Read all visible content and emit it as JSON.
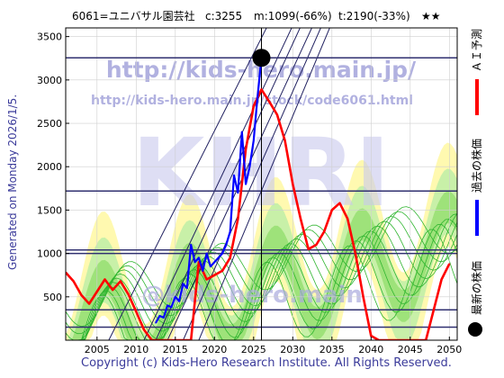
{
  "header": {
    "code_name": "6061=ユニバサル園芸社",
    "current": "c:3255",
    "min": "m:1099(-66%)",
    "target": "t:2190(-33%)",
    "rating": "★★"
  },
  "side_label": "Generated on Monday 2026/1/5.",
  "legend": {
    "ai": "ＡＩ予測",
    "past": "過去の株価",
    "latest": "最新の株価",
    "ai_color": "#ff0000",
    "past_color": "#0000ff",
    "latest_color": "#000000"
  },
  "watermarks": {
    "url_main": "http://kids-hero.main.jp/",
    "url_sub": "http://kids-hero.main.jp/stock/code6061.html",
    "big": "KHRI",
    "bottom": "@kids-hero.main"
  },
  "footer": "Copyright (c) Kids-Hero Research Institute. All Rights Reserved.",
  "chart_data": {
    "type": "line",
    "x_ticks": [
      2005,
      2010,
      2015,
      2020,
      2025,
      2030,
      2035,
      2040,
      2045,
      2050
    ],
    "y_ticks": [
      500,
      1000,
      1500,
      2000,
      2500,
      3000,
      3500
    ],
    "xlim": [
      2001,
      2051
    ],
    "ylim": [
      0,
      3600
    ],
    "grid": true,
    "horizontal_levels": [
      150,
      350,
      1000,
      1040,
      1720,
      3255
    ],
    "latest_point": {
      "x": 2026.0,
      "y": 3255
    },
    "latest_year_line": 2026.0,
    "series": [
      {
        "role": "ai_prediction",
        "color": "#ff0000",
        "x": [
          2001,
          2002,
          2003,
          2004,
          2005,
          2006,
          2007,
          2008,
          2009,
          2010,
          2011,
          2012,
          2013,
          2014,
          2015,
          2016,
          2017,
          2018,
          2019,
          2020,
          2021,
          2022,
          2023,
          2024,
          2025,
          2026,
          2027,
          2028,
          2029,
          2030,
          2031,
          2032,
          2033,
          2034,
          2035,
          2036,
          2037,
          2038,
          2039,
          2040,
          2041,
          2042,
          2043,
          2044,
          2045,
          2046,
          2047,
          2048,
          2049,
          2050
        ],
        "y": [
          780,
          680,
          520,
          420,
          560,
          700,
          580,
          680,
          530,
          330,
          120,
          0,
          0,
          0,
          0,
          0,
          0,
          900,
          700,
          750,
          800,
          950,
          1400,
          2200,
          2700,
          2890,
          2750,
          2600,
          2300,
          1800,
          1400,
          1050,
          1100,
          1250,
          1500,
          1580,
          1400,
          1000,
          500,
          50,
          0,
          0,
          0,
          0,
          0,
          0,
          0,
          350,
          700,
          880
        ]
      },
      {
        "role": "past_price",
        "color": "#0000ff",
        "x": [
          2012.5,
          2013.0,
          2013.5,
          2014.0,
          2014.5,
          2015.0,
          2015.5,
          2016.0,
          2016.5,
          2017.0,
          2017.5,
          2018.0,
          2018.5,
          2019.0,
          2019.5,
          2020.0,
          2020.5,
          2021.0,
          2021.5,
          2022.0,
          2022.5,
          2023.0,
          2023.5,
          2024.0,
          2024.5,
          2025.0,
          2025.5,
          2026.0
        ],
        "y": [
          200,
          280,
          260,
          400,
          380,
          500,
          450,
          650,
          600,
          1100,
          900,
          950,
          800,
          1000,
          850,
          900,
          950,
          1000,
          1100,
          1250,
          1900,
          1700,
          2400,
          1800,
          2000,
          2300,
          2800,
          3255
        ]
      }
    ]
  }
}
